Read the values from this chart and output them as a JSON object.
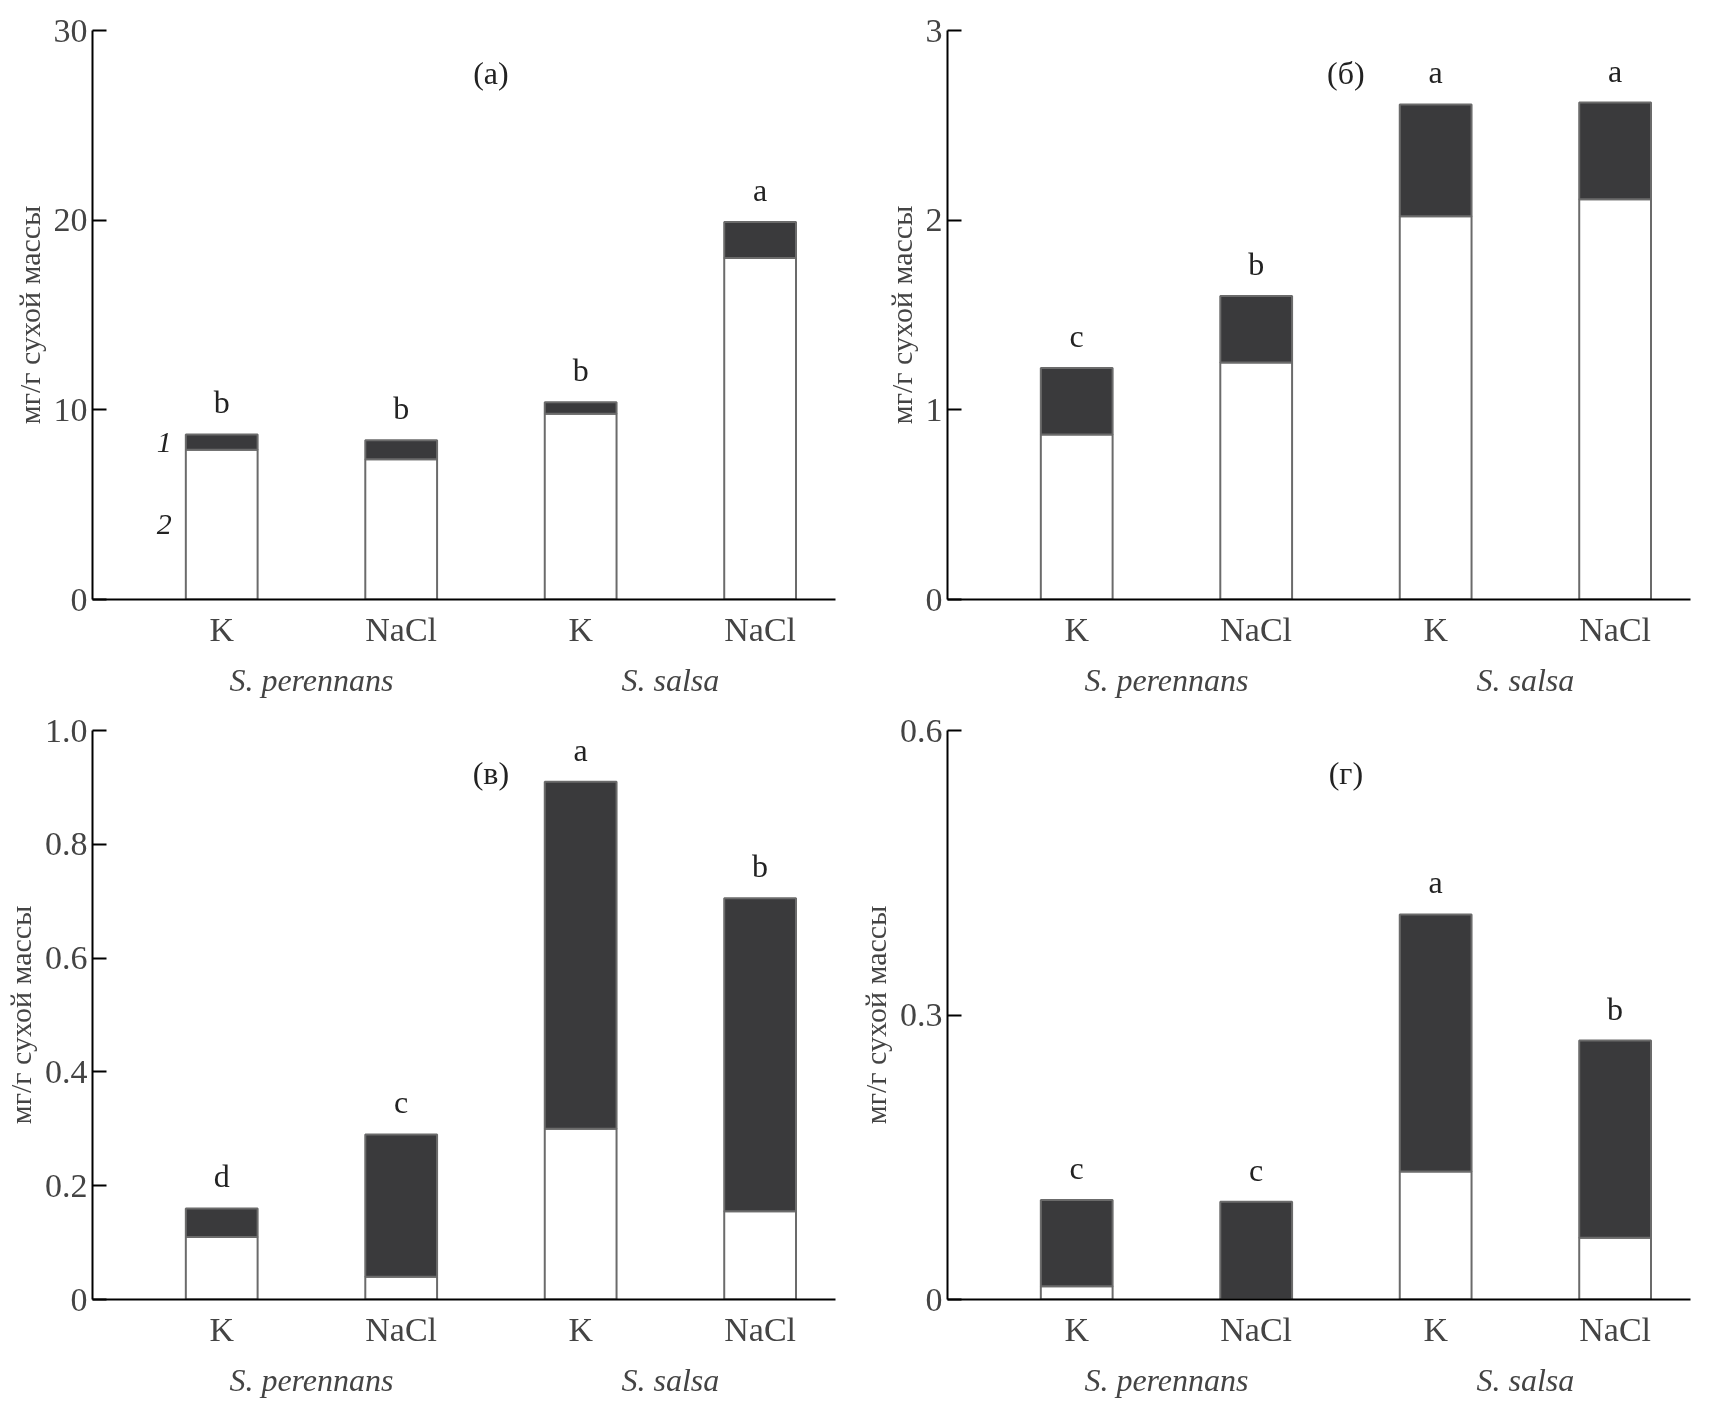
{
  "chart_data": [
    {
      "type": "bar",
      "stacked": true,
      "title": "(a)",
      "ylabel": "мг/г сухой массы",
      "categories": [
        "K",
        "NaCl",
        "K",
        "NaCl"
      ],
      "ylim": [
        0,
        30
      ],
      "yticks": [
        0,
        10,
        20,
        30
      ],
      "series": [
        {
          "name": "2",
          "color": "#ffffff",
          "values": [
            7.9,
            7.4,
            9.8,
            18.0
          ]
        },
        {
          "name": "1",
          "color": "#3a3a3c",
          "values": [
            0.8,
            1.0,
            0.6,
            1.9
          ]
        }
      ],
      "annotations": [
        "S. perennans",
        "S. salsa",
        "b",
        "b",
        "b",
        "a"
      ]
    },
    {
      "type": "bar",
      "stacked": true,
      "title": "(б)",
      "ylabel": "мг/г сухой массы",
      "categories": [
        "K",
        "NaCl",
        "K",
        "NaCl"
      ],
      "ylim": [
        0,
        3
      ],
      "yticks": [
        0,
        1,
        2,
        3
      ],
      "series": [
        {
          "color": "#ffffff",
          "values": [
            0.87,
            1.25,
            2.02,
            2.11
          ]
        },
        {
          "color": "#3a3a3c",
          "values": [
            0.35,
            0.35,
            0.59,
            0.51
          ]
        }
      ],
      "annotations": [
        "S. perennans",
        "S. salsa",
        "c",
        "b",
        "a",
        "a"
      ]
    },
    {
      "type": "bar",
      "stacked": true,
      "title": "(в)",
      "ylabel": "мг/г сухой массы",
      "categories": [
        "K",
        "NaCl",
        "K",
        "NaCl"
      ],
      "ylim": [
        0,
        1
      ],
      "yticks": [
        0,
        {
          "value": 0.2,
          "label": "0.2"
        },
        {
          "value": 0.4,
          "label": "0.4"
        },
        {
          "value": 0.6,
          "label": "0.6"
        },
        {
          "value": 0.8,
          "label": "0.8"
        },
        {
          "value": 1,
          "label": "1.0"
        }
      ],
      "series": [
        {
          "color": "#ffffff",
          "values": [
            0.11,
            0.04,
            0.3,
            0.155
          ]
        },
        {
          "color": "#3a3a3c",
          "values": [
            0.05,
            0.25,
            0.61,
            0.55
          ]
        }
      ],
      "annotations": [
        "S. perennans",
        "S. salsa",
        "d",
        "c",
        "a",
        "b"
      ]
    },
    {
      "type": "bar",
      "stacked": true,
      "title": "(г)",
      "ylabel": "мг/г сухой массы",
      "categories": [
        "K",
        "NaCl",
        "K",
        "NaCl"
      ],
      "ylim": [
        0,
        0.6
      ],
      "yticks": [
        0,
        {
          "value": 0.3,
          "label": "0.3"
        },
        {
          "value": 0.6,
          "label": "0.6"
        }
      ],
      "series": [
        {
          "color": "#ffffff",
          "values": [
            0.014,
            null,
            0.135,
            0.065
          ]
        },
        {
          "color": "#3a3a3c",
          "values": [
            0.091,
            0.103,
            0.271,
            0.208
          ]
        }
      ],
      "annotations": [
        "S. perennans",
        "S. salsa",
        "c",
        "c",
        "a",
        "b"
      ]
    }
  ]
}
